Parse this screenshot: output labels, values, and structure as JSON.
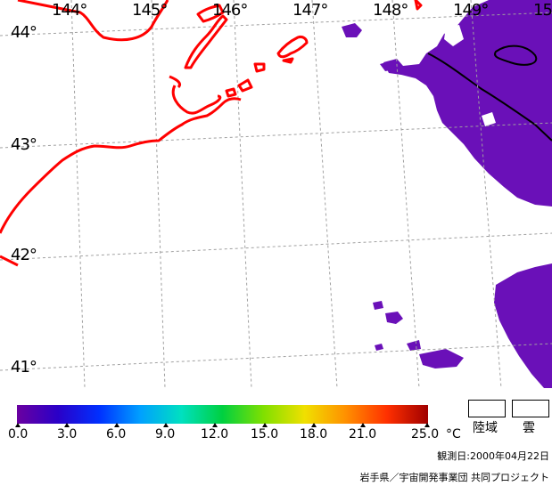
{
  "map": {
    "lon_labels": [
      "144°",
      "145°",
      "146°",
      "147°",
      "148°",
      "149°",
      "15"
    ],
    "lat_labels": [
      "44°",
      "43°",
      "42°",
      "41°"
    ]
  },
  "colorbar": {
    "ticks": [
      "0.0",
      "3.0",
      "6.0",
      "9.0",
      "12.0",
      "15.0",
      "18.0",
      "21.0",
      "25.0"
    ],
    "unit": "°C",
    "colors": [
      "#6a00a0",
      "#2a00c8",
      "#0030ff",
      "#00a0ff",
      "#00e0c0",
      "#00d040",
      "#80e000",
      "#f0e000",
      "#ff9000",
      "#ff3000",
      "#a00000"
    ]
  },
  "legend": {
    "land_label": "陸域",
    "cloud_label": "雲"
  },
  "observation_date": "観測日:2000年04月22日",
  "credit": "岩手県／宇宙開発事業団 共同プロジェクト",
  "colors": {
    "coast": "#ff0000",
    "sst_water": "#6a10b8",
    "grid": "#a0a0a0"
  }
}
